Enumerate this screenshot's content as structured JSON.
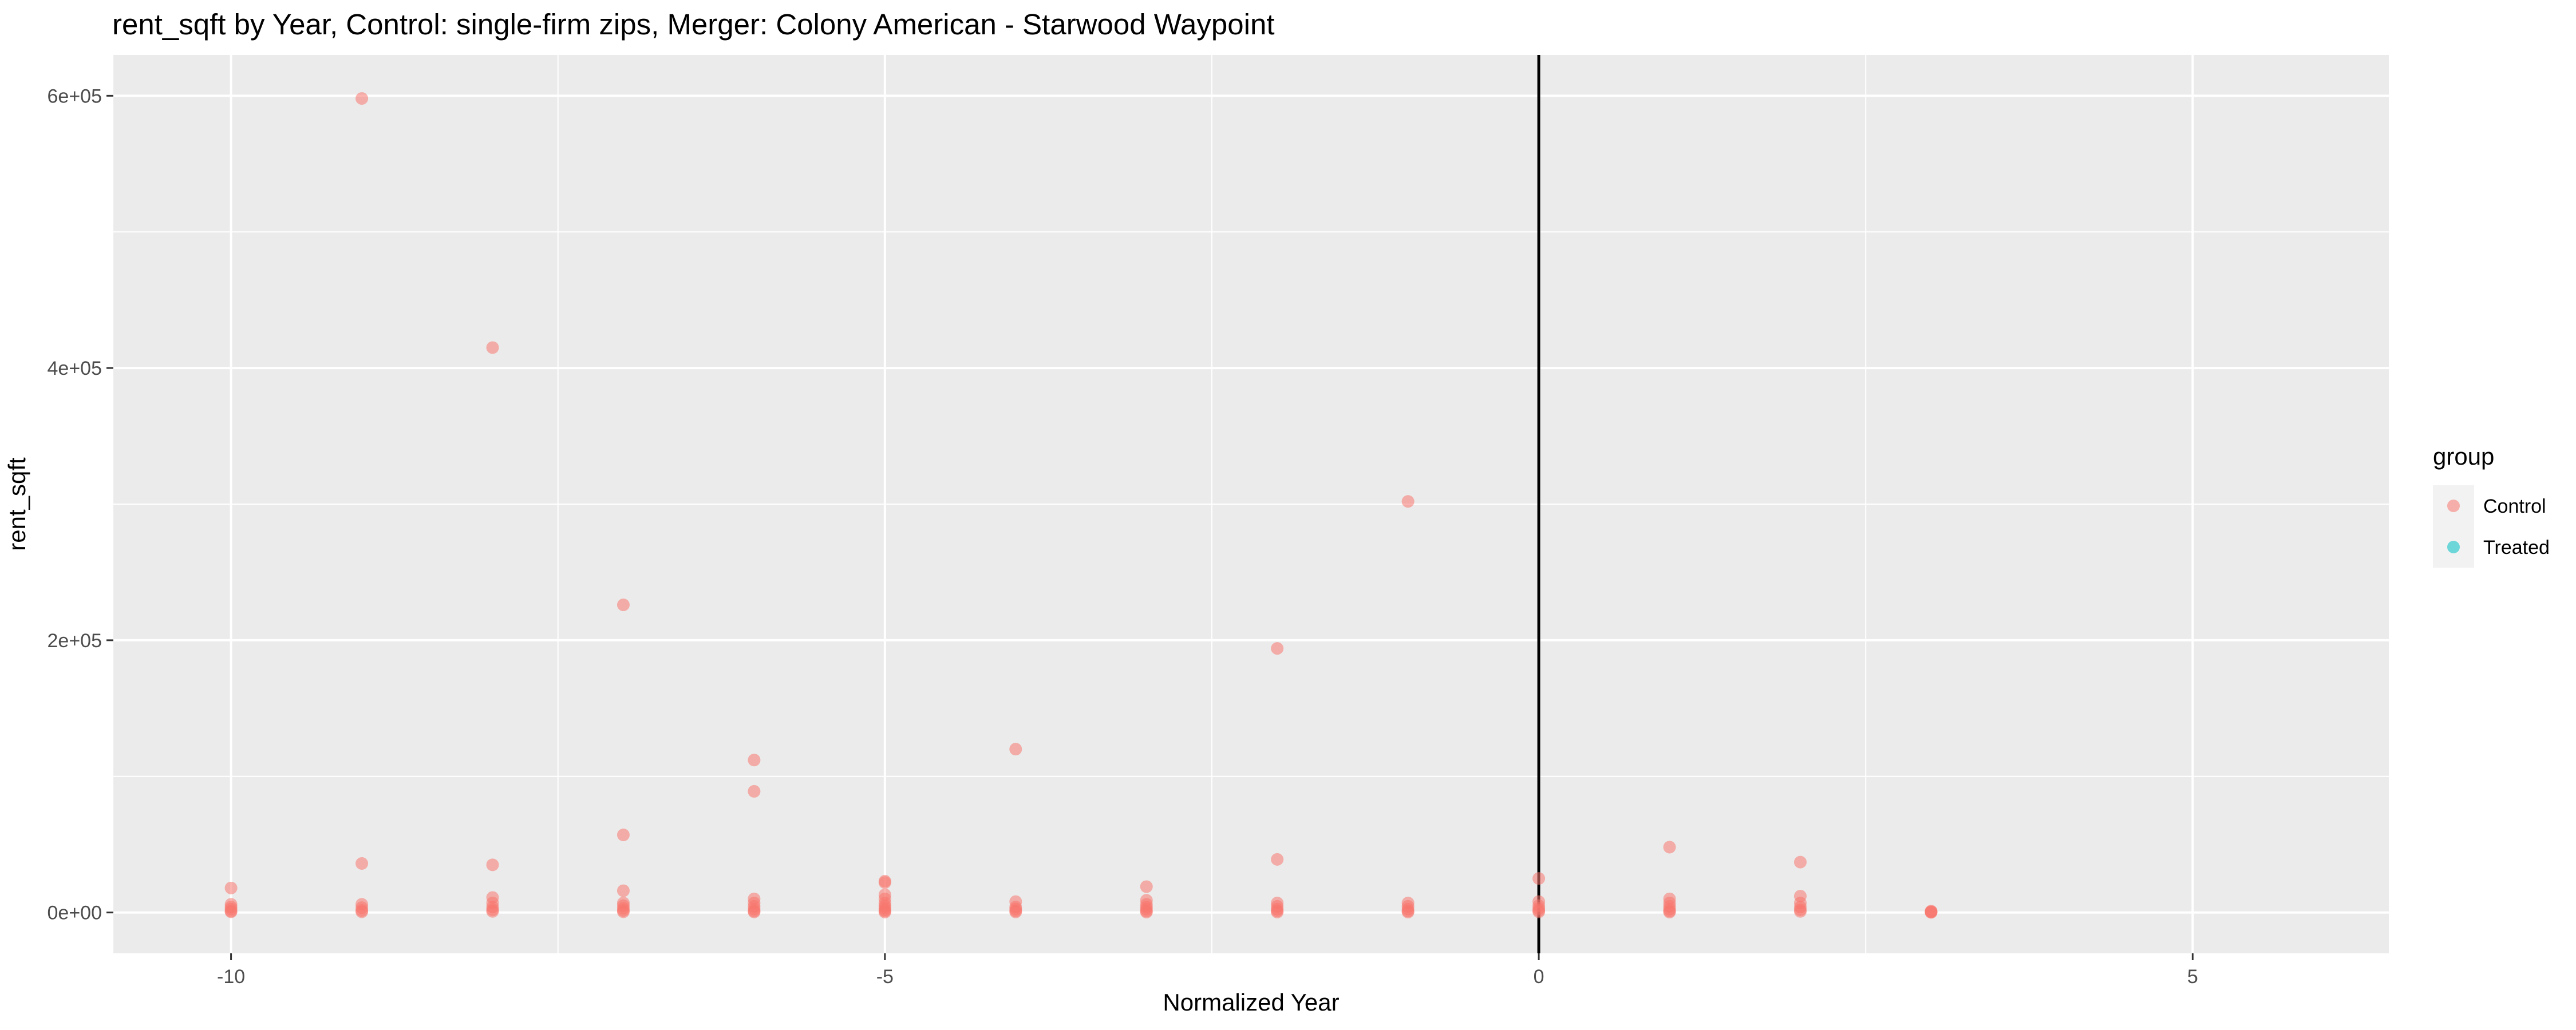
{
  "chart_data": {
    "type": "scatter",
    "title": "rent_sqft by Year, Control: single-firm zips, Merger: Colony American - Starwood Waypoint",
    "xlabel": "Normalized Year",
    "ylabel": "rent_sqft",
    "xlim": [
      -10.9,
      6.5
    ],
    "ylim": [
      -30000,
      630000
    ],
    "x_ticks": [
      -10,
      -5,
      0,
      5
    ],
    "x_tick_labels": [
      "-10",
      "-5",
      "0",
      "5"
    ],
    "y_ticks": [
      0,
      200000,
      400000,
      600000
    ],
    "y_tick_labels": [
      "0e+00",
      "2e+05",
      "4e+05",
      "6e+05"
    ],
    "grid": true,
    "vline_x": 0,
    "legend": {
      "title": "group",
      "placement": "right",
      "entries": [
        {
          "name": "Control",
          "color": "#F8766D"
        },
        {
          "name": "Treated",
          "color": "#00BFC4"
        }
      ]
    },
    "series": [
      {
        "name": "Control",
        "color": "#F8766D",
        "points": [
          [
            -10,
            18000
          ],
          [
            -10,
            6000
          ],
          [
            -10,
            4000
          ],
          [
            -10,
            2500
          ],
          [
            -10,
            1000
          ],
          [
            -10,
            500
          ],
          [
            -9,
            598000
          ],
          [
            -9,
            36000
          ],
          [
            -9,
            6000
          ],
          [
            -9,
            3500
          ],
          [
            -9,
            1500
          ],
          [
            -9,
            500
          ],
          [
            -8,
            415000
          ],
          [
            -8,
            35000
          ],
          [
            -8,
            11000
          ],
          [
            -8,
            7000
          ],
          [
            -8,
            4000
          ],
          [
            -8,
            2000
          ],
          [
            -8,
            800
          ],
          [
            -7,
            226000
          ],
          [
            -7,
            57000
          ],
          [
            -7,
            16000
          ],
          [
            -7,
            7000
          ],
          [
            -7,
            5000
          ],
          [
            -7,
            3000
          ],
          [
            -7,
            1500
          ],
          [
            -7,
            500
          ],
          [
            -6,
            112000
          ],
          [
            -6,
            89000
          ],
          [
            -6,
            10000
          ],
          [
            -6,
            7000
          ],
          [
            -6,
            4500
          ],
          [
            -6,
            2500
          ],
          [
            -6,
            1000
          ],
          [
            -6,
            400
          ],
          [
            -5,
            23000
          ],
          [
            -5,
            22000
          ],
          [
            -5,
            13000
          ],
          [
            -5,
            10000
          ],
          [
            -5,
            7000
          ],
          [
            -5,
            5000
          ],
          [
            -5,
            3500
          ],
          [
            -5,
            2000
          ],
          [
            -5,
            1000
          ],
          [
            -5,
            300
          ],
          [
            -4,
            120000
          ],
          [
            -4,
            8000
          ],
          [
            -4,
            4000
          ],
          [
            -4,
            2500
          ],
          [
            -4,
            1200
          ],
          [
            -4,
            400
          ],
          [
            -3,
            19000
          ],
          [
            -3,
            9000
          ],
          [
            -3,
            6000
          ],
          [
            -3,
            4000
          ],
          [
            -3,
            2500
          ],
          [
            -3,
            1000
          ],
          [
            -3,
            300
          ],
          [
            -2,
            194000
          ],
          [
            -2,
            39000
          ],
          [
            -2,
            7000
          ],
          [
            -2,
            4500
          ],
          [
            -2,
            2500
          ],
          [
            -2,
            1200
          ],
          [
            -2,
            300
          ],
          [
            -1,
            302000
          ],
          [
            -1,
            7000
          ],
          [
            -1,
            4500
          ],
          [
            -1,
            2500
          ],
          [
            -1,
            1000
          ],
          [
            -1,
            300
          ],
          [
            0,
            25000
          ],
          [
            0,
            8000
          ],
          [
            0,
            5000
          ],
          [
            0,
            3000
          ],
          [
            0,
            1500
          ],
          [
            0,
            500
          ],
          [
            1,
            48000
          ],
          [
            1,
            10000
          ],
          [
            1,
            7000
          ],
          [
            1,
            4500
          ],
          [
            1,
            2500
          ],
          [
            1,
            1000
          ],
          [
            1,
            300
          ],
          [
            2,
            37000
          ],
          [
            2,
            12000
          ],
          [
            2,
            7000
          ],
          [
            2,
            4000
          ],
          [
            2,
            2000
          ],
          [
            2,
            800
          ],
          [
            3,
            1000
          ],
          [
            3,
            600
          ],
          [
            3,
            300
          ],
          [
            3,
            100
          ]
        ]
      },
      {
        "name": "Treated",
        "color": "#00BFC4",
        "points": []
      }
    ]
  }
}
